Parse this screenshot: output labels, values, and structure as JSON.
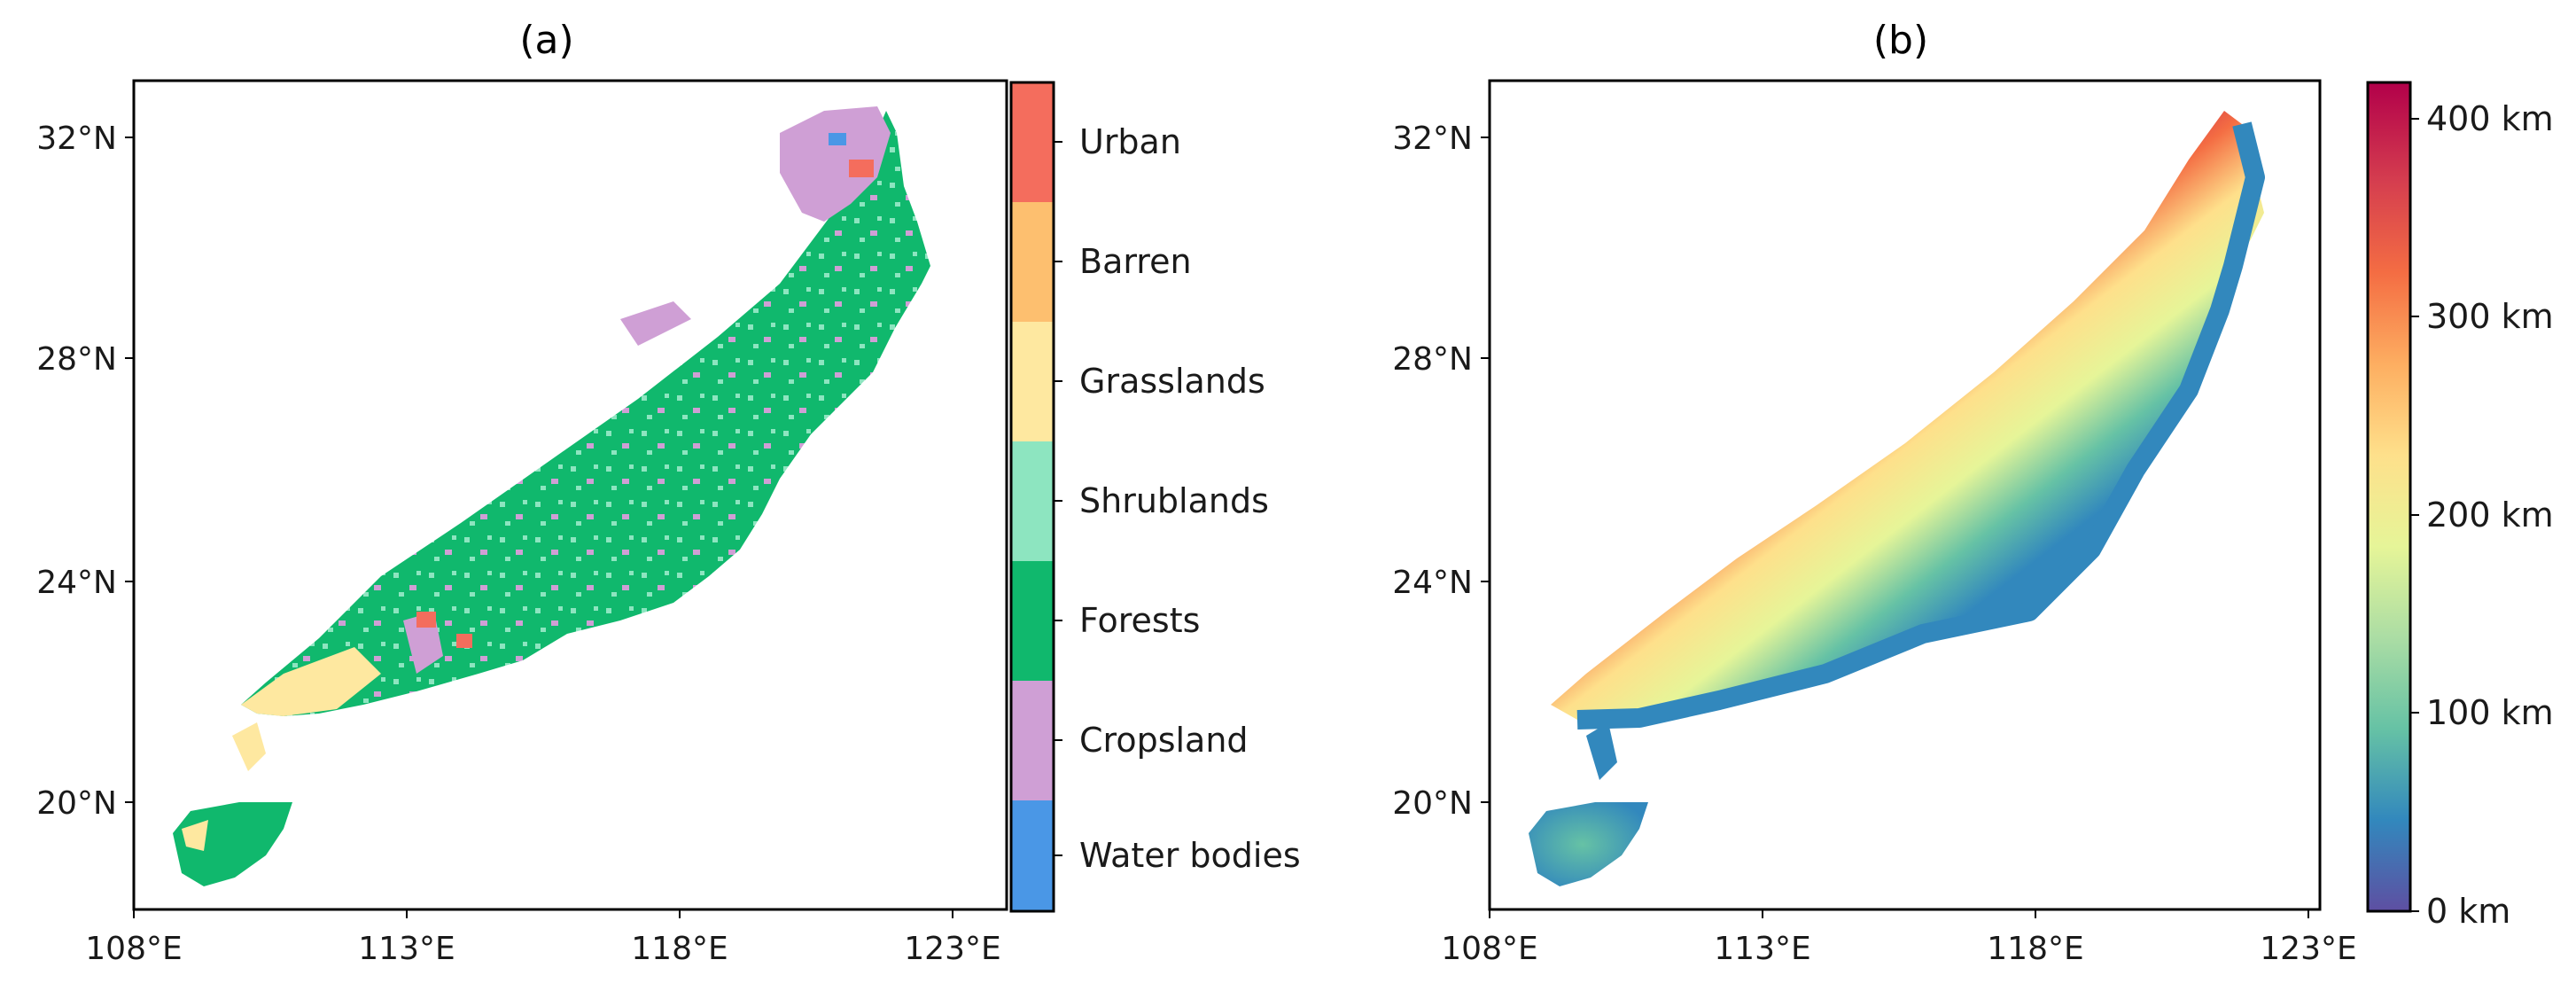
{
  "panel_a": {
    "title": "(a)",
    "x_ticks": [
      "108°E",
      "113°E",
      "118°E",
      "123°E"
    ],
    "y_ticks": [
      "32°N",
      "28°N",
      "24°N",
      "20°N"
    ],
    "legend": [
      {
        "label": "Urban",
        "color": "#f46d5d"
      },
      {
        "label": "Barren",
        "color": "#fdbf6f"
      },
      {
        "label": "Grasslands",
        "color": "#fee8a0"
      },
      {
        "label": "Shrublands",
        "color": "#8de5c0"
      },
      {
        "label": "Forests",
        "color": "#10b86d"
      },
      {
        "label": "Cropsland",
        "color": "#cf9fd5"
      },
      {
        "label": "Water bodies",
        "color": "#4a97e6"
      }
    ]
  },
  "panel_b": {
    "title": "(b)",
    "x_ticks": [
      "108°E",
      "113°E",
      "118°E",
      "123°E"
    ],
    "y_ticks": [
      "32°N",
      "28°N",
      "24°N",
      "20°N"
    ],
    "colorbar_ticks": [
      "400 km",
      "300 km",
      "200 km",
      "100 km",
      "0 km"
    ],
    "colormap": [
      "#5e4fa2",
      "#3288bd",
      "#66c2a5",
      "#abdda4",
      "#e6f598",
      "#fee08b",
      "#fdae61",
      "#f46d43",
      "#d53e4f",
      "#b2004a"
    ]
  },
  "chart_data": [
    {
      "type": "map",
      "title": "(a)",
      "x_range": [
        "108°E",
        "123°E"
      ],
      "y_range": [
        "18°N",
        "33°N"
      ],
      "categories": [
        "Urban",
        "Barren",
        "Grasslands",
        "Shrublands",
        "Forests",
        "Cropsland",
        "Water bodies"
      ]
    },
    {
      "type": "map",
      "title": "(b)",
      "x_range": [
        "108°E",
        "123°E"
      ],
      "y_range": [
        "18°N",
        "33°N"
      ],
      "colorbar_range_km": [
        0,
        415
      ],
      "colorbar_ticks_km": [
        0,
        100,
        200,
        300,
        400
      ]
    }
  ]
}
